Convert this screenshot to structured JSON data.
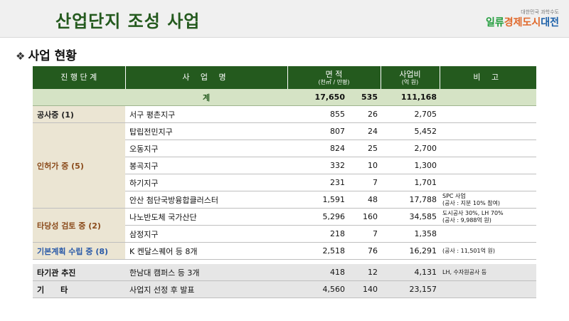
{
  "header": {
    "title": "산업단지 조성 사업",
    "logo_small": "대한민국 과학수도",
    "logo_part1": "일류",
    "logo_part2": "경제도시",
    "logo_part3": "대전"
  },
  "section": {
    "bullet": "❖",
    "title": "사업 현황"
  },
  "table": {
    "headers": {
      "stage": "진 행 단 계",
      "project": "사 업 명",
      "area": "면 적",
      "area_unit": "(천㎡ / 만평)",
      "cost": "사업비",
      "cost_unit": "(억 원)",
      "note": "비 고"
    },
    "total": {
      "label": "계",
      "area_m2": "17,650",
      "area_pyeong": "535",
      "cost": "111,168"
    },
    "groups": {
      "g1": {
        "stage": "공사중 (1)",
        "rows": [
          {
            "name": "서구 평촌지구",
            "m2": "855",
            "py": "26",
            "cost": "2,705",
            "note": ""
          }
        ]
      },
      "g2": {
        "stage": "인허가 중 (5)",
        "rows": [
          {
            "name": "탑립전민지구",
            "m2": "807",
            "py": "24",
            "cost": "5,452",
            "note": ""
          },
          {
            "name": "오동지구",
            "m2": "824",
            "py": "25",
            "cost": "2,700",
            "note": ""
          },
          {
            "name": "봉곡지구",
            "m2": "332",
            "py": "10",
            "cost": "1,300",
            "note": ""
          },
          {
            "name": "하기지구",
            "m2": "231",
            "py": "7",
            "cost": "1,701",
            "note": ""
          },
          {
            "name": "안산 첨단국방융합클러스터",
            "m2": "1,591",
            "py": "48",
            "cost": "17,788",
            "note": "SPC 사업",
            "note2": "(공사 : 지분 10% 참여)"
          }
        ]
      },
      "g3": {
        "stage": "타당성 검토 중 (2)",
        "rows": [
          {
            "name": "나노반도체 국가산단",
            "m2": "5,296",
            "py": "160",
            "cost": "34,585",
            "note": "도시공사 30%, LH 70%",
            "note2": "(공사 : 9,988억 원)"
          },
          {
            "name": "삼정지구",
            "m2": "218",
            "py": "7",
            "cost": "1,358",
            "note": ""
          }
        ]
      },
      "g4": {
        "stage": "기본계획 수립 중 (8)",
        "rows": [
          {
            "name": "K 켄달스퀘어 등 8개",
            "m2": "2,518",
            "py": "76",
            "cost": "16,291",
            "note": "(공사 : 11,501억 원)"
          }
        ]
      },
      "g5": {
        "stage": "타기관 추진",
        "rows": [
          {
            "name": "한남대 캠퍼스 등 3개",
            "m2": "418",
            "py": "12",
            "cost": "4,131",
            "note": "LH, 수자원공사 등"
          }
        ]
      },
      "g6": {
        "stage": "기      타",
        "rows": [
          {
            "name": "사업지 선정 후 발표",
            "m2": "4,560",
            "py": "140",
            "cost": "23,157",
            "note": ""
          }
        ]
      }
    }
  },
  "colors": {
    "header_green": "#245a1e",
    "total_bg": "#d5e3c5",
    "stage_bg": "#ebe5d3"
  }
}
